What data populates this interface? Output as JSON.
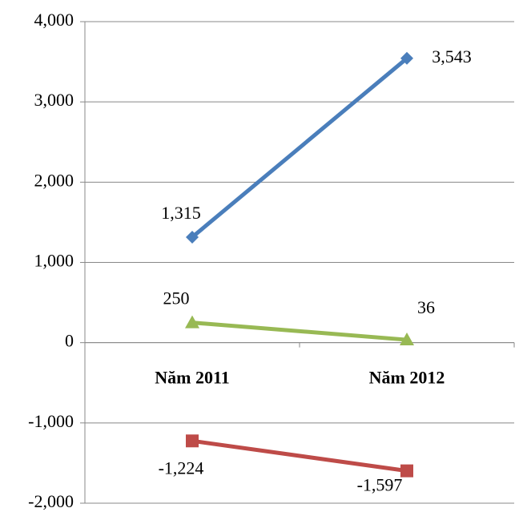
{
  "chart_data": {
    "type": "line",
    "categories": [
      "Năm 2011",
      "Năm 2012"
    ],
    "series": [
      {
        "color": "#4a7ebb",
        "marker": "diamond",
        "values": [
          1315,
          3543
        ],
        "value_labels": [
          "1,315",
          "3,543"
        ]
      },
      {
        "color": "#be4b48",
        "marker": "square",
        "values": [
          -1224,
          -1597
        ],
        "value_labels": [
          "-1,224",
          "-1,597"
        ]
      },
      {
        "color": "#98b954",
        "marker": "triangle",
        "values": [
          250,
          36
        ]
      }
    ],
    "ylim": [
      -2000,
      4000
    ],
    "yticks": [
      {
        "value": -2000,
        "label": "-2,000"
      },
      {
        "value": -1000,
        "label": "-1,000"
      },
      0,
      {
        "value": 1000,
        "label": "1,000"
      },
      {
        "value": 2000,
        "label": "2,000"
      },
      {
        "value": 3000,
        "label": "3,000"
      },
      {
        "value": 4000,
        "label": "4,000"
      }
    ],
    "grid": true
  }
}
